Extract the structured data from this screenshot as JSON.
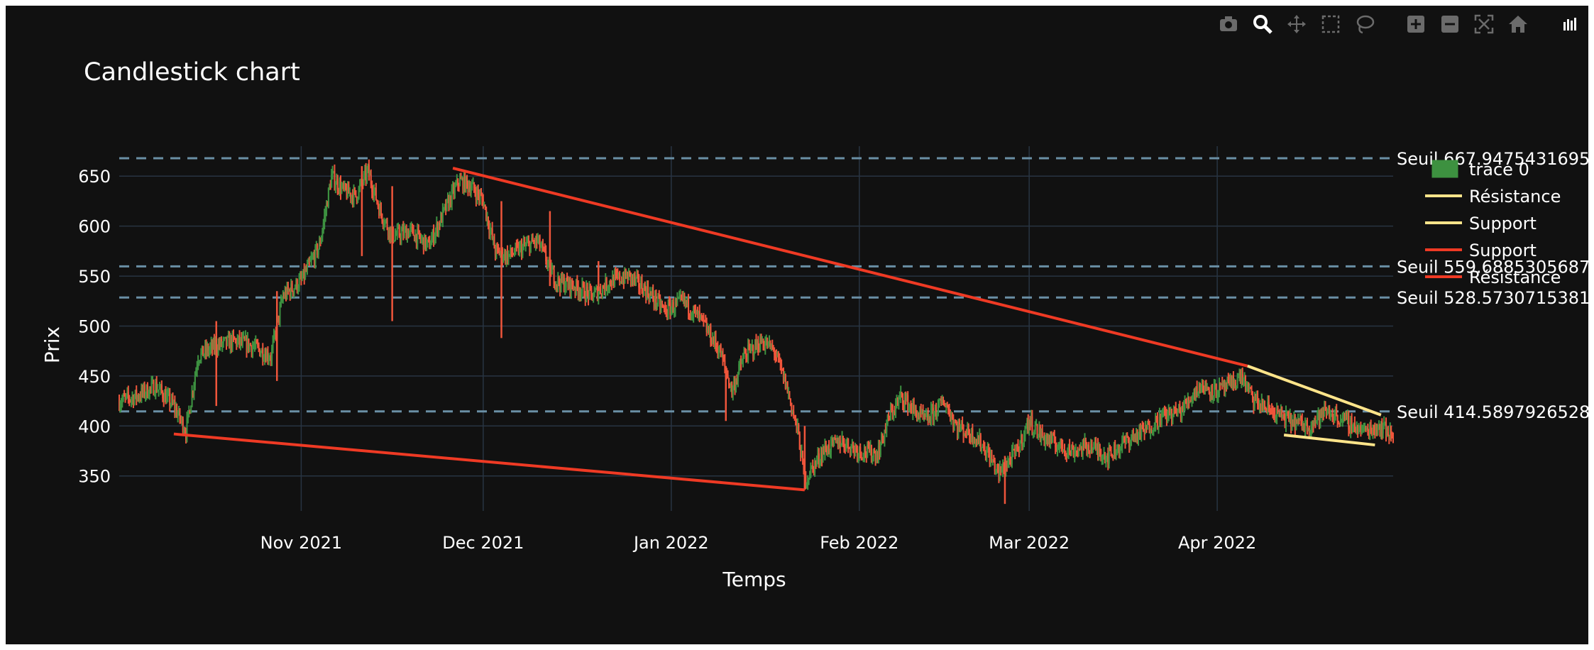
{
  "colors": {
    "background": "#111111",
    "grid": "#283442",
    "increasing": "#3D9140",
    "decreasing": "#EF553B",
    "threshold_line": "#6a8fa5",
    "resistance_line": "#FFE48A",
    "support_line": "#EF3A24",
    "text": "#ffffff",
    "modebar_icon": "#6b6b6b"
  },
  "modebar": [
    {
      "name": "camera-icon",
      "title": "Download plot as a png"
    },
    {
      "name": "zoom-icon",
      "title": "Zoom"
    },
    {
      "name": "pan-icon",
      "title": "Pan"
    },
    {
      "name": "box-select-icon",
      "title": "Box Select"
    },
    {
      "name": "lasso-select-icon",
      "title": "Lasso Select"
    },
    {
      "name": "zoom-in-icon",
      "title": "Zoom in"
    },
    {
      "name": "zoom-out-icon",
      "title": "Zoom out"
    },
    {
      "name": "autoscale-icon",
      "title": "Autoscale"
    },
    {
      "name": "reset-axes-icon",
      "title": "Reset axes"
    },
    {
      "name": "plotly-logo-icon",
      "title": "Produced with Plotly"
    }
  ],
  "chart_data": {
    "type": "candlestick",
    "title": "Candlestick chart",
    "xlabel": "Temps",
    "ylabel": "Prix",
    "x_range": [
      "2021-10-02",
      "2022-04-30"
    ],
    "y_range": [
      315,
      680
    ],
    "x_ticks": [
      {
        "date": "2021-11-01",
        "label": "Nov 2021"
      },
      {
        "date": "2021-12-01",
        "label": "Dec 2021"
      },
      {
        "date": "2022-01-01",
        "label": "Jan 2022"
      },
      {
        "date": "2022-02-01",
        "label": "Feb 2022"
      },
      {
        "date": "2022-03-01",
        "label": "Mar 2022"
      },
      {
        "date": "2022-04-01",
        "label": "Apr 2022"
      }
    ],
    "y_ticks": [
      350,
      400,
      450,
      500,
      550,
      600,
      650
    ],
    "grid": true,
    "legend": {
      "placement": "top-right",
      "items": [
        {
          "label": "trace 0",
          "kind": "candle"
        },
        {
          "label": "Résistance",
          "kind": "line",
          "color": "#FFE48A"
        },
        {
          "label": "Support",
          "kind": "line",
          "color": "#FFE48A"
        },
        {
          "label": "Support",
          "kind": "line",
          "color": "#EF3A24"
        },
        {
          "label": "Résistance",
          "kind": "line",
          "color": "#EF3A24"
        }
      ]
    },
    "thresholds": [
      {
        "value": 667.9475431695,
        "label": "Seuil 667.9475431695"
      },
      {
        "value": 559.6885305687,
        "label": "Seuil 559.6885305687"
      },
      {
        "value": 528.5730715381,
        "label": "Seuil 528.5730715381"
      },
      {
        "value": 414.5897926528,
        "label": "Seuil 414.5897926528"
      }
    ],
    "trendlines": [
      {
        "name": "Résistance",
        "color": "#EF3A24",
        "points": [
          [
            "2021-11-26",
            658
          ],
          [
            "2022-04-06",
            460
          ]
        ]
      },
      {
        "name": "Support",
        "color": "#EF3A24",
        "points": [
          [
            "2021-10-11",
            392
          ],
          [
            "2022-01-23",
            336
          ]
        ]
      },
      {
        "name": "Résistance",
        "color": "#FFE48A",
        "points": [
          [
            "2022-04-06",
            460
          ],
          [
            "2022-04-28",
            411
          ]
        ]
      },
      {
        "name": "Support",
        "color": "#FFE48A",
        "points": [
          [
            "2022-04-12",
            391
          ],
          [
            "2022-04-27",
            381
          ]
        ]
      }
    ],
    "price_path": [
      [
        "2021-10-02",
        425
      ],
      [
        "2021-10-05",
        430
      ],
      [
        "2021-10-08",
        440
      ],
      [
        "2021-10-11",
        420
      ],
      [
        "2021-10-13",
        395
      ],
      [
        "2021-10-15",
        470
      ],
      [
        "2021-10-18",
        480
      ],
      [
        "2021-10-21",
        485
      ],
      [
        "2021-10-24",
        480
      ],
      [
        "2021-10-27",
        470
      ],
      [
        "2021-10-29",
        530
      ],
      [
        "2021-11-01",
        545
      ],
      [
        "2021-11-04",
        580
      ],
      [
        "2021-11-06",
        650
      ],
      [
        "2021-11-08",
        635
      ],
      [
        "2021-11-10",
        630
      ],
      [
        "2021-11-12",
        655
      ],
      [
        "2021-11-14",
        615
      ],
      [
        "2021-11-16",
        590
      ],
      [
        "2021-11-19",
        595
      ],
      [
        "2021-11-22",
        580
      ],
      [
        "2021-11-25",
        620
      ],
      [
        "2021-11-27",
        645
      ],
      [
        "2021-11-29",
        640
      ],
      [
        "2021-12-01",
        625
      ],
      [
        "2021-12-03",
        575
      ],
      [
        "2021-12-05",
        570
      ],
      [
        "2021-12-08",
        580
      ],
      [
        "2021-12-10",
        585
      ],
      [
        "2021-12-13",
        545
      ],
      [
        "2021-12-16",
        540
      ],
      [
        "2021-12-19",
        530
      ],
      [
        "2021-12-22",
        545
      ],
      [
        "2021-12-25",
        550
      ],
      [
        "2021-12-28",
        535
      ],
      [
        "2021-12-31",
        515
      ],
      [
        "2022-01-03",
        525
      ],
      [
        "2022-01-06",
        505
      ],
      [
        "2022-01-09",
        475
      ],
      [
        "2022-01-11",
        435
      ],
      [
        "2022-01-13",
        470
      ],
      [
        "2022-01-16",
        485
      ],
      [
        "2022-01-18",
        475
      ],
      [
        "2022-01-20",
        440
      ],
      [
        "2022-01-22",
        390
      ],
      [
        "2022-01-23",
        345
      ],
      [
        "2022-01-26",
        375
      ],
      [
        "2022-01-29",
        385
      ],
      [
        "2022-02-01",
        375
      ],
      [
        "2022-02-04",
        372
      ],
      [
        "2022-02-06",
        410
      ],
      [
        "2022-02-08",
        430
      ],
      [
        "2022-02-10",
        415
      ],
      [
        "2022-02-12",
        405
      ],
      [
        "2022-02-15",
        425
      ],
      [
        "2022-02-17",
        400
      ],
      [
        "2022-02-20",
        390
      ],
      [
        "2022-02-22",
        375
      ],
      [
        "2022-02-24",
        352
      ],
      [
        "2022-02-27",
        375
      ],
      [
        "2022-03-01",
        405
      ],
      [
        "2022-03-03",
        390
      ],
      [
        "2022-03-06",
        380
      ],
      [
        "2022-03-08",
        375
      ],
      [
        "2022-03-11",
        380
      ],
      [
        "2022-03-14",
        370
      ],
      [
        "2022-03-17",
        385
      ],
      [
        "2022-03-20",
        395
      ],
      [
        "2022-03-23",
        410
      ],
      [
        "2022-03-26",
        415
      ],
      [
        "2022-03-29",
        440
      ],
      [
        "2022-04-01",
        435
      ],
      [
        "2022-04-03",
        440
      ],
      [
        "2022-04-05",
        450
      ],
      [
        "2022-04-07",
        425
      ],
      [
        "2022-04-10",
        415
      ],
      [
        "2022-04-13",
        405
      ],
      [
        "2022-04-16",
        400
      ],
      [
        "2022-04-19",
        415
      ],
      [
        "2022-04-22",
        405
      ],
      [
        "2022-04-25",
        395
      ],
      [
        "2022-04-28",
        400
      ],
      [
        "2022-04-30",
        390
      ]
    ],
    "spikes": [
      [
        "2021-10-18",
        420,
        505
      ],
      [
        "2021-10-28",
        445,
        535
      ],
      [
        "2021-11-16",
        505,
        640
      ],
      [
        "2021-11-11",
        570,
        660
      ],
      [
        "2021-12-04",
        488,
        625
      ],
      [
        "2021-12-12",
        540,
        615
      ],
      [
        "2021-12-20",
        535,
        565
      ],
      [
        "2022-01-23",
        336,
        400
      ],
      [
        "2022-02-25",
        322,
        370
      ],
      [
        "2022-01-10",
        405,
        460
      ]
    ]
  }
}
